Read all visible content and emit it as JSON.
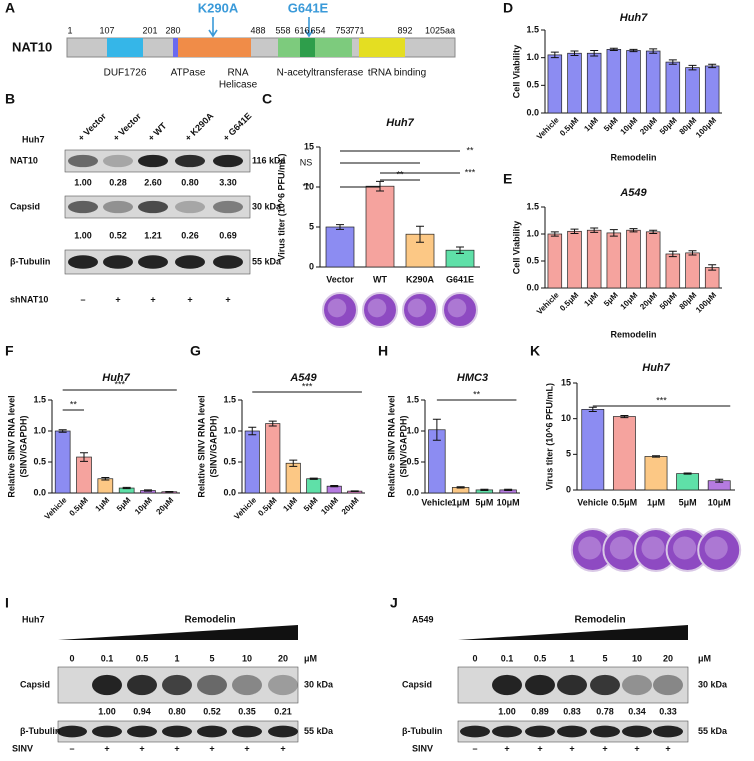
{
  "domain_map": {
    "panel": "A",
    "protein": "NAT10",
    "positions": [
      "1",
      "107",
      "201",
      "280",
      "488",
      "558",
      "616",
      "654",
      "753",
      "771",
      "892",
      "1025aa"
    ],
    "mutations": [
      "K290A",
      "G641E"
    ],
    "domains": [
      "DUF1726",
      "ATPase",
      "RNA",
      "Helicase",
      "N-acetyltransferase",
      "tRNA binding"
    ]
  },
  "blot_B": {
    "panel": "B",
    "cell": "Huh7",
    "lanes": [
      "+ Vector",
      "+ Vector",
      "+ WT",
      "+ K290A",
      "+ G641E"
    ],
    "rows": [
      {
        "name": "NAT10",
        "size": "116 kDa",
        "quant": [
          "1.00",
          "0.28",
          "2.60",
          "0.80",
          "3.30"
        ]
      },
      {
        "name": "Capsid",
        "size": "30 kDa",
        "quant": [
          "1.00",
          "0.52",
          "1.21",
          "0.26",
          "0.69"
        ]
      },
      {
        "name": "β-Tubulin",
        "size": "55 kDa"
      }
    ],
    "treatment": "shNAT10",
    "treatment_marks": [
      "–",
      "+",
      "+",
      "+",
      "+"
    ]
  },
  "blot_I": {
    "panel": "I",
    "cell": "Huh7",
    "drug": "Remodelin",
    "doses": [
      "0",
      "0.1",
      "0.5",
      "1",
      "5",
      "10",
      "20"
    ],
    "unit": "μM",
    "rows": [
      {
        "name": "Capsid",
        "size": "30 kDa",
        "quant": [
          "1.00",
          "0.94",
          "0.80",
          "0.52",
          "0.35",
          "0.21"
        ]
      },
      {
        "name": "β-Tubulin",
        "size": "55 kDa"
      }
    ],
    "treatment": "SINV",
    "treatment_marks": [
      "–",
      "+",
      "+",
      "+",
      "+",
      "+",
      "+"
    ]
  },
  "blot_J": {
    "panel": "J",
    "cell": "A549",
    "drug": "Remodelin",
    "doses": [
      "0",
      "0.1",
      "0.5",
      "1",
      "5",
      "10",
      "20"
    ],
    "unit": "μM",
    "rows": [
      {
        "name": "Capsid",
        "size": "30 kDa",
        "quant": [
          "1.00",
          "0.89",
          "0.83",
          "0.78",
          "0.34",
          "0.33"
        ]
      },
      {
        "name": "β-Tubulin",
        "size": "55 kDa"
      }
    ],
    "treatment": "SINV",
    "treatment_marks": [
      "–",
      "+",
      "+",
      "+",
      "+",
      "+",
      "+"
    ]
  },
  "chart_data": [
    {
      "type": "bar",
      "panel": "C",
      "title": "Huh7",
      "y_label": "Virus titer (10^6 PFU/mL)",
      "categories": [
        "Vector",
        "WT",
        "K290A",
        "G641E"
      ],
      "values": [
        5.0,
        10.1,
        4.1,
        2.1
      ],
      "errors": [
        0.3,
        0.6,
        1.0,
        0.4
      ],
      "colors": [
        "#8c8cf2",
        "#f5a39e",
        "#fcc885",
        "#5fe0a8"
      ],
      "ylim": [
        0,
        15
      ],
      "yticks": [
        0,
        5,
        10,
        15
      ],
      "annotations": [
        "**",
        "NS",
        "***",
        "**",
        "**"
      ]
    },
    {
      "type": "bar",
      "panel": "D",
      "title": "Huh7",
      "y_label": "Cell Viability",
      "x_label": "Remodelin",
      "categories": [
        "Vehicle",
        "0.5μM",
        "1μM",
        "5μM",
        "10μM",
        "20μM",
        "50μM",
        "80μM",
        "100μM"
      ],
      "values": [
        1.05,
        1.08,
        1.08,
        1.15,
        1.13,
        1.12,
        0.92,
        0.82,
        0.85
      ],
      "errors": [
        0.05,
        0.04,
        0.05,
        0.02,
        0.02,
        0.04,
        0.04,
        0.04,
        0.03
      ],
      "color": "#8c8cf2",
      "ylim": [
        0,
        1.5
      ],
      "yticks": [
        {
          "value": 0,
          "label": "0.0"
        },
        0.5,
        {
          "value": 1,
          "label": "1.0"
        },
        1.5
      ]
    },
    {
      "type": "bar",
      "panel": "E",
      "title": "A549",
      "y_label": "Cell Viability",
      "x_label": "Remodelin",
      "categories": [
        "Vehicle",
        "0.5μM",
        "1μM",
        "5μM",
        "10μM",
        "20μM",
        "50μM",
        "80μM",
        "100μM"
      ],
      "values": [
        1.0,
        1.05,
        1.07,
        1.02,
        1.07,
        1.04,
        0.63,
        0.65,
        0.38
      ],
      "errors": [
        0.04,
        0.04,
        0.04,
        0.06,
        0.03,
        0.03,
        0.05,
        0.04,
        0.05
      ],
      "color": "#f5a39e",
      "ylim": [
        0,
        1.5
      ],
      "yticks": [
        {
          "value": 0,
          "label": "0.0"
        },
        0.5,
        {
          "value": 1,
          "label": "1.0"
        },
        1.5
      ]
    },
    {
      "type": "bar",
      "panel": "F",
      "title": "Huh7",
      "y_label": [
        "Relative SINV RNA level",
        "(SINV/GAPDH)"
      ],
      "categories": [
        "Vehicle",
        "0.5μM",
        "1μM",
        "5μM",
        "10μM",
        "20μM"
      ],
      "values": [
        1.0,
        0.58,
        0.23,
        0.08,
        0.04,
        0.02
      ],
      "errors": [
        0.02,
        0.07,
        0.02,
        0.01,
        0.01,
        0.005
      ],
      "colors": [
        "#8c8cf2",
        "#f5a39e",
        "#fcc885",
        "#5fe0a8",
        "#b57be0",
        "#f08ad6"
      ],
      "ylim": [
        0,
        1.5
      ],
      "yticks": [
        {
          "value": 0,
          "label": "0.0"
        },
        0.5,
        {
          "value": 1,
          "label": "1.0"
        },
        1.5
      ],
      "annotations": [
        "***",
        "**"
      ]
    },
    {
      "type": "bar",
      "panel": "G",
      "title": "A549",
      "y_label": [
        "Relative SINV RNA level",
        "(SINV/GAPDH)"
      ],
      "categories": [
        "Vehicle",
        "0.5μM",
        "1μM",
        "5μM",
        "10μM",
        "20μM"
      ],
      "values": [
        1.0,
        1.12,
        0.48,
        0.23,
        0.11,
        0.03
      ],
      "errors": [
        0.06,
        0.04,
        0.05,
        0.01,
        0.01,
        0.005
      ],
      "colors": [
        "#8c8cf2",
        "#f5a39e",
        "#fcc885",
        "#5fe0a8",
        "#b57be0",
        "#f08ad6"
      ],
      "ylim": [
        0,
        1.5
      ],
      "yticks": [
        {
          "value": 0,
          "label": "0.0"
        },
        0.5,
        {
          "value": 1,
          "label": "1.0"
        },
        1.5
      ],
      "annotations": [
        "***"
      ]
    },
    {
      "type": "bar",
      "panel": "H",
      "title": "HMC3",
      "y_label": [
        "Relative SINV RNA level",
        "(SINV/GAPDH)"
      ],
      "categories": [
        "Vehicle",
        "1μM",
        "5μM",
        "10μM"
      ],
      "values": [
        1.02,
        0.09,
        0.05,
        0.05
      ],
      "errors": [
        0.17,
        0.01,
        0.01,
        0.01
      ],
      "colors": [
        "#8c8cf2",
        "#fcc885",
        "#5fe0a8",
        "#b57be0"
      ],
      "ylim": [
        0,
        1.5
      ],
      "yticks": [
        {
          "value": 0,
          "label": "0.0"
        },
        0.5,
        {
          "value": 1,
          "label": "1.0"
        },
        1.5
      ],
      "annotations": [
        "**"
      ]
    },
    {
      "type": "bar",
      "panel": "K",
      "title": "Huh7",
      "y_label": "Virus titer (10^6 PFU/mL)",
      "categories": [
        "Vehicle",
        "0.5μM",
        "1μM",
        "5μM",
        "10μM"
      ],
      "values": [
        11.3,
        10.3,
        4.7,
        2.3,
        1.3
      ],
      "errors": [
        0.3,
        0.15,
        0.1,
        0.08,
        0.2
      ],
      "colors": [
        "#8c8cf2",
        "#f5a39e",
        "#fcc885",
        "#5fe0a8",
        "#b57be0"
      ],
      "ylim": [
        0,
        15
      ],
      "yticks": [
        0,
        5,
        10,
        15
      ],
      "annotations": [
        "***"
      ]
    }
  ]
}
